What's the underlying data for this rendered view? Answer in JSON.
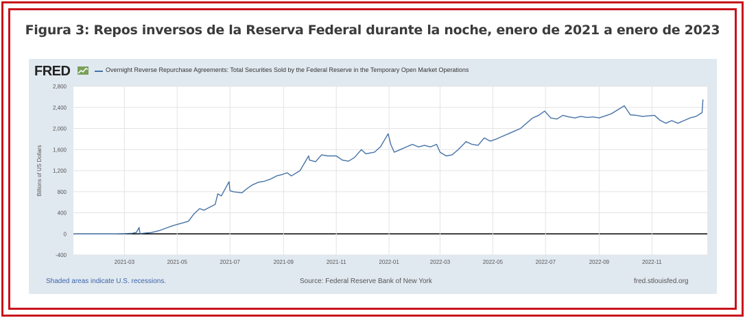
{
  "figure_title": "Figura 3: Repos inversos de la Reserva Federal durante la noche, enero de 2021 a enero de 2023",
  "fred_logo": "FRED",
  "footer": {
    "recessions_note": "Shaded areas indicate U.S. recessions.",
    "source": "Source: Federal Reserve Bank of New York",
    "site": "fred.stlouisfed.org"
  },
  "colors": {
    "frame": "#c8101a",
    "series": "#4572a7",
    "panel": "#e1e9f0"
  },
  "chart_data": {
    "type": "line",
    "title": "",
    "xlabel": "",
    "ylabel": "Billions of US Dollars",
    "ylim": [
      -400,
      2800
    ],
    "y_ticks": [
      2800,
      2400,
      2000,
      1600,
      1200,
      800,
      400,
      0,
      -400
    ],
    "y_tick_labels": [
      "2,800",
      "2,400",
      "2,000",
      "1,600",
      "1,200",
      "800",
      "400",
      "0",
      "-400"
    ],
    "x_range": [
      "2021-01-01",
      "2023-01-04"
    ],
    "x_ticks": [
      "2021-03",
      "2021-05",
      "2021-07",
      "2021-09",
      "2021-11",
      "2022-01",
      "2022-03",
      "2022-05",
      "2022-07",
      "2022-09",
      "2022-11"
    ],
    "grid": true,
    "legend": "top-left",
    "series": [
      {
        "name": "Overnight Reverse Repurchase Agreements: Total Securities Sold by the Federal Reserve in the Temporary Open Market Operations",
        "points": [
          [
            "2021-01-01",
            0
          ],
          [
            "2021-02-15",
            0
          ],
          [
            "2021-03-01",
            5
          ],
          [
            "2021-03-10",
            10
          ],
          [
            "2021-03-15",
            30
          ],
          [
            "2021-03-18",
            120
          ],
          [
            "2021-03-19",
            5
          ],
          [
            "2021-03-25",
            15
          ],
          [
            "2021-04-01",
            25
          ],
          [
            "2021-04-10",
            60
          ],
          [
            "2021-04-20",
            120
          ],
          [
            "2021-04-25",
            150
          ],
          [
            "2021-05-01",
            180
          ],
          [
            "2021-05-08",
            210
          ],
          [
            "2021-05-14",
            240
          ],
          [
            "2021-05-20",
            370
          ],
          [
            "2021-05-27",
            480
          ],
          [
            "2021-06-01",
            450
          ],
          [
            "2021-06-07",
            500
          ],
          [
            "2021-06-14",
            560
          ],
          [
            "2021-06-17",
            760
          ],
          [
            "2021-06-21",
            720
          ],
          [
            "2021-06-30",
            990
          ],
          [
            "2021-07-01",
            820
          ],
          [
            "2021-07-05",
            800
          ],
          [
            "2021-07-15",
            780
          ],
          [
            "2021-07-20",
            850
          ],
          [
            "2021-07-27",
            930
          ],
          [
            "2021-08-03",
            980
          ],
          [
            "2021-08-10",
            1000
          ],
          [
            "2021-08-17",
            1040
          ],
          [
            "2021-08-24",
            1100
          ],
          [
            "2021-08-31",
            1130
          ],
          [
            "2021-09-05",
            1160
          ],
          [
            "2021-09-10",
            1100
          ],
          [
            "2021-09-20",
            1200
          ],
          [
            "2021-09-30",
            1480
          ],
          [
            "2021-10-01",
            1400
          ],
          [
            "2021-10-08",
            1370
          ],
          [
            "2021-10-15",
            1500
          ],
          [
            "2021-10-22",
            1480
          ],
          [
            "2021-11-01",
            1480
          ],
          [
            "2021-11-08",
            1400
          ],
          [
            "2021-11-15",
            1380
          ],
          [
            "2021-11-22",
            1450
          ],
          [
            "2021-11-30",
            1600
          ],
          [
            "2021-12-05",
            1520
          ],
          [
            "2021-12-15",
            1550
          ],
          [
            "2021-12-22",
            1650
          ],
          [
            "2021-12-31",
            1900
          ],
          [
            "2022-01-03",
            1700
          ],
          [
            "2022-01-07",
            1550
          ],
          [
            "2022-01-14",
            1600
          ],
          [
            "2022-01-21",
            1650
          ],
          [
            "2022-01-28",
            1700
          ],
          [
            "2022-02-04",
            1650
          ],
          [
            "2022-02-11",
            1680
          ],
          [
            "2022-02-18",
            1650
          ],
          [
            "2022-02-25",
            1700
          ],
          [
            "2022-03-01",
            1550
          ],
          [
            "2022-03-08",
            1480
          ],
          [
            "2022-03-15",
            1500
          ],
          [
            "2022-03-22",
            1600
          ],
          [
            "2022-03-31",
            1750
          ],
          [
            "2022-04-07",
            1700
          ],
          [
            "2022-04-14",
            1680
          ],
          [
            "2022-04-21",
            1820
          ],
          [
            "2022-04-28",
            1760
          ],
          [
            "2022-05-05",
            1800
          ],
          [
            "2022-05-12",
            1850
          ],
          [
            "2022-05-19",
            1900
          ],
          [
            "2022-05-26",
            1950
          ],
          [
            "2022-06-02",
            2000
          ],
          [
            "2022-06-09",
            2100
          ],
          [
            "2022-06-16",
            2200
          ],
          [
            "2022-06-23",
            2250
          ],
          [
            "2022-06-30",
            2330
          ],
          [
            "2022-07-07",
            2200
          ],
          [
            "2022-07-14",
            2180
          ],
          [
            "2022-07-21",
            2250
          ],
          [
            "2022-07-28",
            2220
          ],
          [
            "2022-08-04",
            2200
          ],
          [
            "2022-08-11",
            2230
          ],
          [
            "2022-08-18",
            2210
          ],
          [
            "2022-08-25",
            2220
          ],
          [
            "2022-09-01",
            2200
          ],
          [
            "2022-09-08",
            2240
          ],
          [
            "2022-09-15",
            2280
          ],
          [
            "2022-09-22",
            2350
          ],
          [
            "2022-09-30",
            2430
          ],
          [
            "2022-10-07",
            2260
          ],
          [
            "2022-10-14",
            2250
          ],
          [
            "2022-10-21",
            2230
          ],
          [
            "2022-10-28",
            2240
          ],
          [
            "2022-11-04",
            2250
          ],
          [
            "2022-11-10",
            2160
          ],
          [
            "2022-11-17",
            2100
          ],
          [
            "2022-11-24",
            2150
          ],
          [
            "2022-12-01",
            2100
          ],
          [
            "2022-12-08",
            2150
          ],
          [
            "2022-12-15",
            2200
          ],
          [
            "2022-12-22",
            2230
          ],
          [
            "2022-12-29",
            2300
          ],
          [
            "2022-12-30",
            2550
          ]
        ]
      }
    ]
  }
}
